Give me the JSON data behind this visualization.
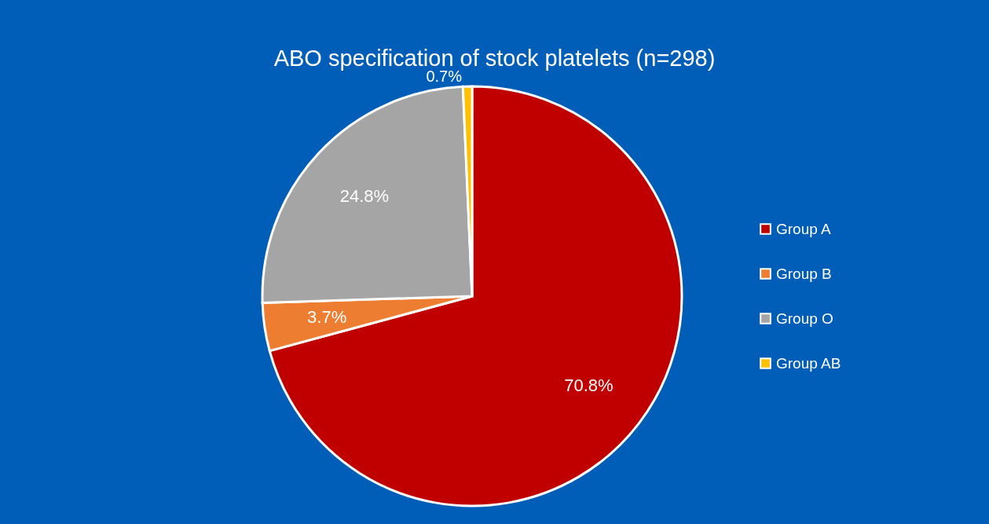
{
  "chart_data": {
    "type": "pie",
    "title": "ABO specification of stock platelets (n=298)",
    "categories": [
      "Group A",
      "Group B",
      "Group O",
      "Group AB"
    ],
    "values": [
      70.8,
      3.7,
      24.8,
      0.7
    ],
    "colors": [
      "#c00000",
      "#ed7d31",
      "#a5a5a5",
      "#ffc000"
    ],
    "value_labels": [
      "70.8%",
      "3.7%",
      "24.8%",
      "0.7%"
    ],
    "legend": "right"
  }
}
